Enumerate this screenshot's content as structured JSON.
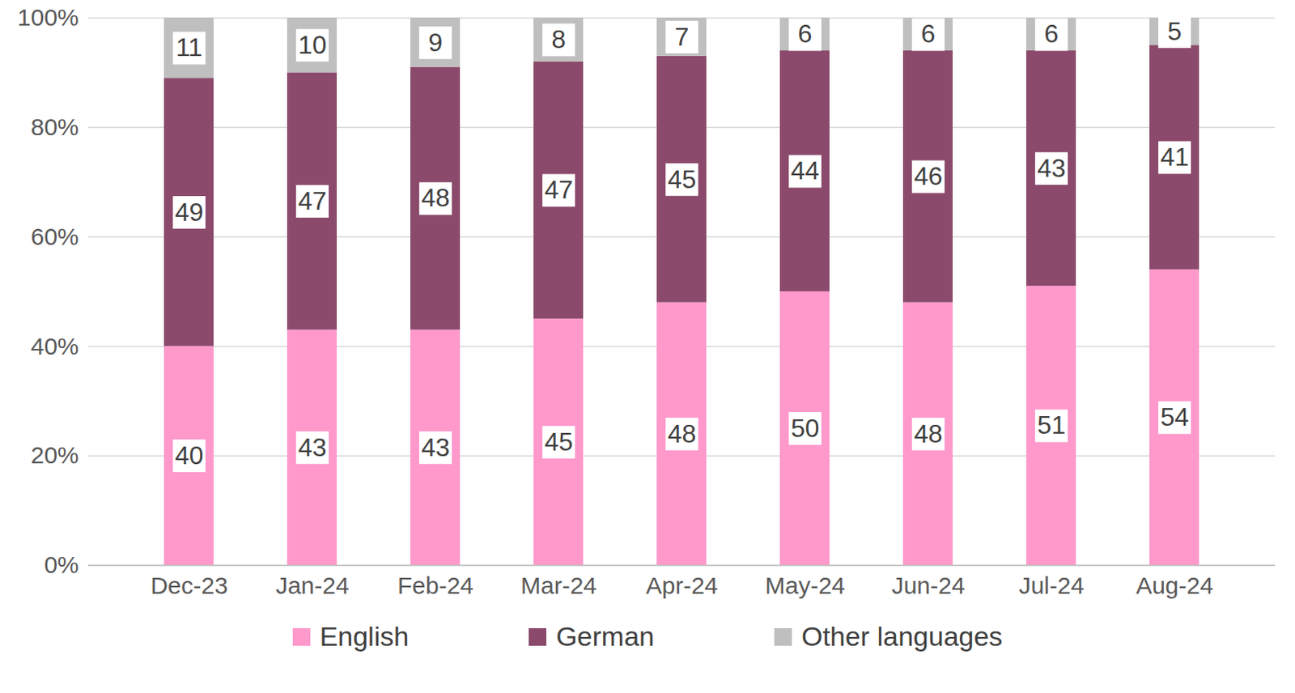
{
  "chart_data": {
    "type": "bar",
    "stacked": true,
    "data_labels": true,
    "grid": true,
    "legend": "bottom",
    "categories": [
      "Dec-23",
      "Jan-24",
      "Feb-24",
      "Mar-24",
      "Apr-24",
      "May-24",
      "Jun-24",
      "Jul-24",
      "Aug-24"
    ],
    "series": [
      {
        "name": "English",
        "color": "#ff99cc",
        "values": [
          40,
          43,
          43,
          45,
          48,
          50,
          48,
          51,
          54
        ]
      },
      {
        "name": "German",
        "color": "#8b4a6b",
        "values": [
          49,
          47,
          48,
          47,
          45,
          44,
          46,
          43,
          41
        ]
      },
      {
        "name": "Other languages",
        "color": "#bfbfbf",
        "values": [
          11,
          10,
          9,
          8,
          7,
          6,
          6,
          6,
          5
        ]
      }
    ],
    "ylim": [
      0,
      100
    ],
    "yticks": [
      {
        "value": 0,
        "label": "0%"
      },
      {
        "value": 20,
        "label": "20%"
      },
      {
        "value": 40,
        "label": "40%"
      },
      {
        "value": 60,
        "label": "60%"
      },
      {
        "value": 80,
        "label": "80%"
      },
      {
        "value": 100,
        "label": "100%"
      }
    ]
  }
}
